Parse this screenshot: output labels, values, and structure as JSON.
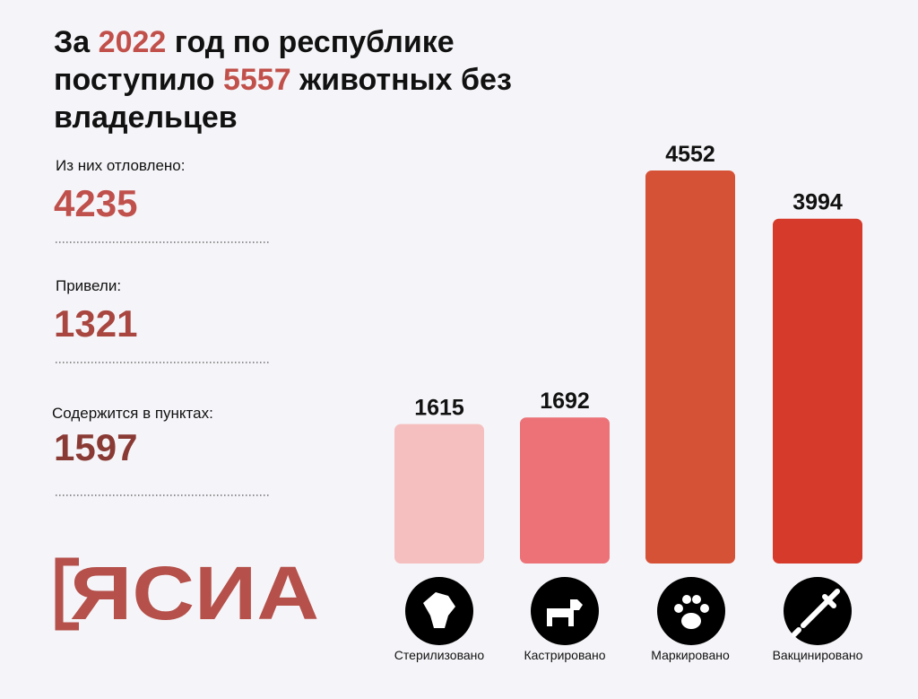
{
  "header": {
    "title_lines": [
      [
        "За ",
        "2022",
        " год по республике"
      ],
      [
        "поступило ",
        "5557",
        " животных без"
      ],
      [
        "владельцев"
      ]
    ]
  },
  "stats": [
    {
      "label": "Из них отловлено:",
      "value": "4235"
    },
    {
      "label": "Привели:",
      "value": "1321"
    },
    {
      "label": "Содержится в пунктах:",
      "value": "1597"
    }
  ],
  "logo": "ЯСИА",
  "chart_data": {
    "type": "bar",
    "categories": [
      "Стерилизовано",
      "Кастрировано",
      "Маркировано",
      "Вакцинировано"
    ],
    "values": [
      1615,
      1692,
      4552,
      3994
    ],
    "colors": [
      "#f5bfbf",
      "#ec7277",
      "#d65237",
      "#d63a2a"
    ]
  }
}
